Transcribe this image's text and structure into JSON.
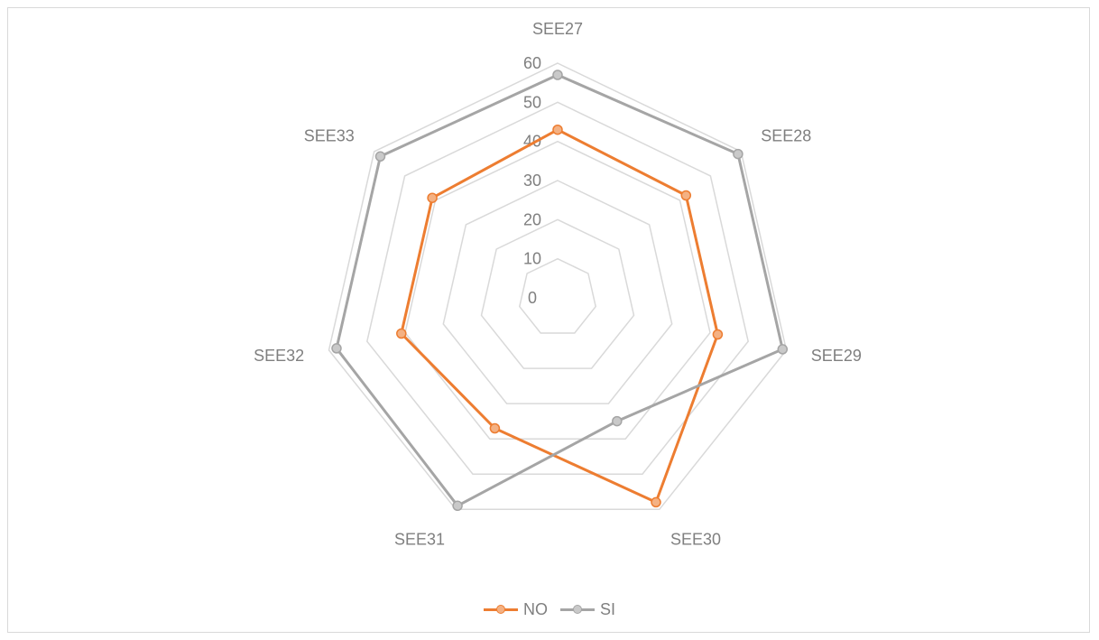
{
  "chart_data": {
    "type": "radar",
    "categories": [
      "SEE27",
      "SEE28",
      "SEE29",
      "SEE30",
      "SEE31",
      "SEE32",
      "SEE33"
    ],
    "series": [
      {
        "name": "NO",
        "values": [
          43,
          42,
          42,
          58,
          37,
          41,
          41
        ],
        "color": "#ed7d31",
        "marker_fill": "#f4b183"
      },
      {
        "name": "SI",
        "values": [
          57,
          59,
          59,
          35,
          59,
          58,
          58
        ],
        "color": "#a5a5a5",
        "marker_fill": "#c9c9c9"
      }
    ],
    "r_ticks": [
      0,
      10,
      20,
      30,
      40,
      50,
      60
    ],
    "rlim": [
      0,
      60
    ],
    "grid": true,
    "legend_position": "bottom"
  }
}
